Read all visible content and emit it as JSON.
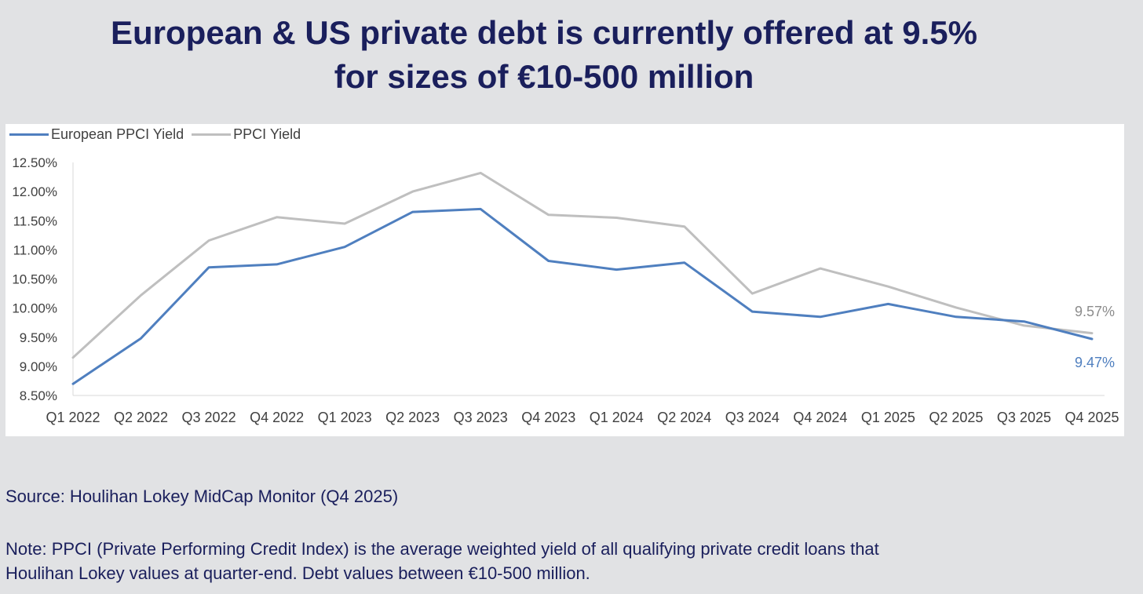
{
  "title": {
    "line1": "European & US private debt is currently offered at 9.5%",
    "line2": "for sizes of €10-500 million"
  },
  "chart_data": {
    "type": "line",
    "categories": [
      "Q1 2022",
      "Q2 2022",
      "Q3 2022",
      "Q4 2022",
      "Q1 2023",
      "Q2 2023",
      "Q3 2023",
      "Q4 2023",
      "Q1 2024",
      "Q2 2024",
      "Q3 2024",
      "Q4 2024",
      "Q1 2025",
      "Q2 2025",
      "Q3 2025",
      "Q4 2025"
    ],
    "series": [
      {
        "name": "European PPCI Yield",
        "color": "#4f7fbf",
        "values": [
          8.7,
          9.48,
          10.7,
          10.75,
          11.05,
          11.65,
          11.7,
          10.81,
          10.66,
          10.78,
          9.94,
          9.85,
          10.07,
          9.85,
          9.77,
          9.47
        ]
      },
      {
        "name": "PPCI Yield",
        "color": "#bfbfbf",
        "values": [
          9.15,
          10.22,
          11.16,
          11.56,
          11.45,
          12.0,
          12.32,
          11.6,
          11.55,
          11.4,
          10.25,
          10.68,
          10.37,
          10.01,
          9.7,
          9.57
        ]
      }
    ],
    "y_ticks": [
      "12.50%",
      "12.00%",
      "11.50%",
      "11.00%",
      "10.50%",
      "10.00%",
      "9.50%",
      "9.00%",
      "8.50%"
    ],
    "y_tick_values": [
      12.5,
      12.0,
      11.5,
      11.0,
      10.5,
      10.0,
      9.5,
      9.0,
      8.5
    ],
    "ylim": [
      8.5,
      12.5
    ],
    "end_labels": [
      "9.47%",
      "9.57%"
    ],
    "legend": "top-left",
    "grid": false,
    "xlabel": "",
    "ylabel": ""
  },
  "source": "Source: Houlihan Lokey MidCap Monitor (Q4 2025)",
  "note_line1": "Note: PPCI (Private Performing Credit Index) is the average weighted yield of all qualifying private credit loans that",
  "note_line2": "Houlihan Lokey values at quarter-end. Debt values between €10-500 million."
}
